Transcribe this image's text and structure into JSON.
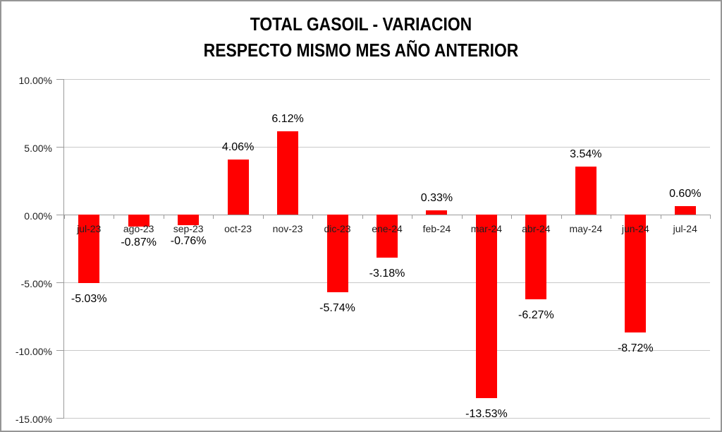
{
  "window": {
    "background": "#ffffff",
    "border_color": "#969696"
  },
  "chart_data": {
    "type": "bar",
    "title": "TOTAL GASOIL - VARIACION RESPECTO MISMO MES AÑO ANTERIOR",
    "title_lines": [
      "TOTAL GASOIL - VARIACION",
      "RESPECTO MISMO MES AÑO ANTERIOR"
    ],
    "categories": [
      "jul-23",
      "ago-23",
      "sep-23",
      "oct-23",
      "nov-23",
      "dic-23",
      "ene-24",
      "feb-24",
      "mar-24",
      "abr-24",
      "may-24",
      "jun-24",
      "jul-24"
    ],
    "values": [
      -5.03,
      -0.87,
      -0.76,
      4.06,
      6.12,
      -5.74,
      -3.18,
      0.33,
      -13.53,
      -6.27,
      3.54,
      -8.72,
      0.6
    ],
    "data_labels": [
      "-5.03%",
      "-0.87%",
      "-0.76%",
      "4.06%",
      "6.12%",
      "-5.74%",
      "-3.18%",
      "0.33%",
      "-13.53%",
      "-6.27%",
      "3.54%",
      "-8.72%",
      "0.60%"
    ],
    "xlabel": "",
    "ylabel": "",
    "ylim": [
      -15,
      10
    ],
    "y_ticks": [
      {
        "label": "10.00%",
        "value": 10
      },
      {
        "label": "5.00%",
        "value": 5
      },
      {
        "label": "0.00%",
        "value": 0
      },
      {
        "label": "-5.00%",
        "value": -5
      },
      {
        "label": "-10.00%",
        "value": -10
      },
      {
        "label": "-15.00%",
        "value": -15
      }
    ],
    "grid": true,
    "legend": "none",
    "bar_color": "#ff0000",
    "gridline_color": "#c9c9c9",
    "axis_color": "#9b9b9b",
    "text_color": "#000000"
  }
}
